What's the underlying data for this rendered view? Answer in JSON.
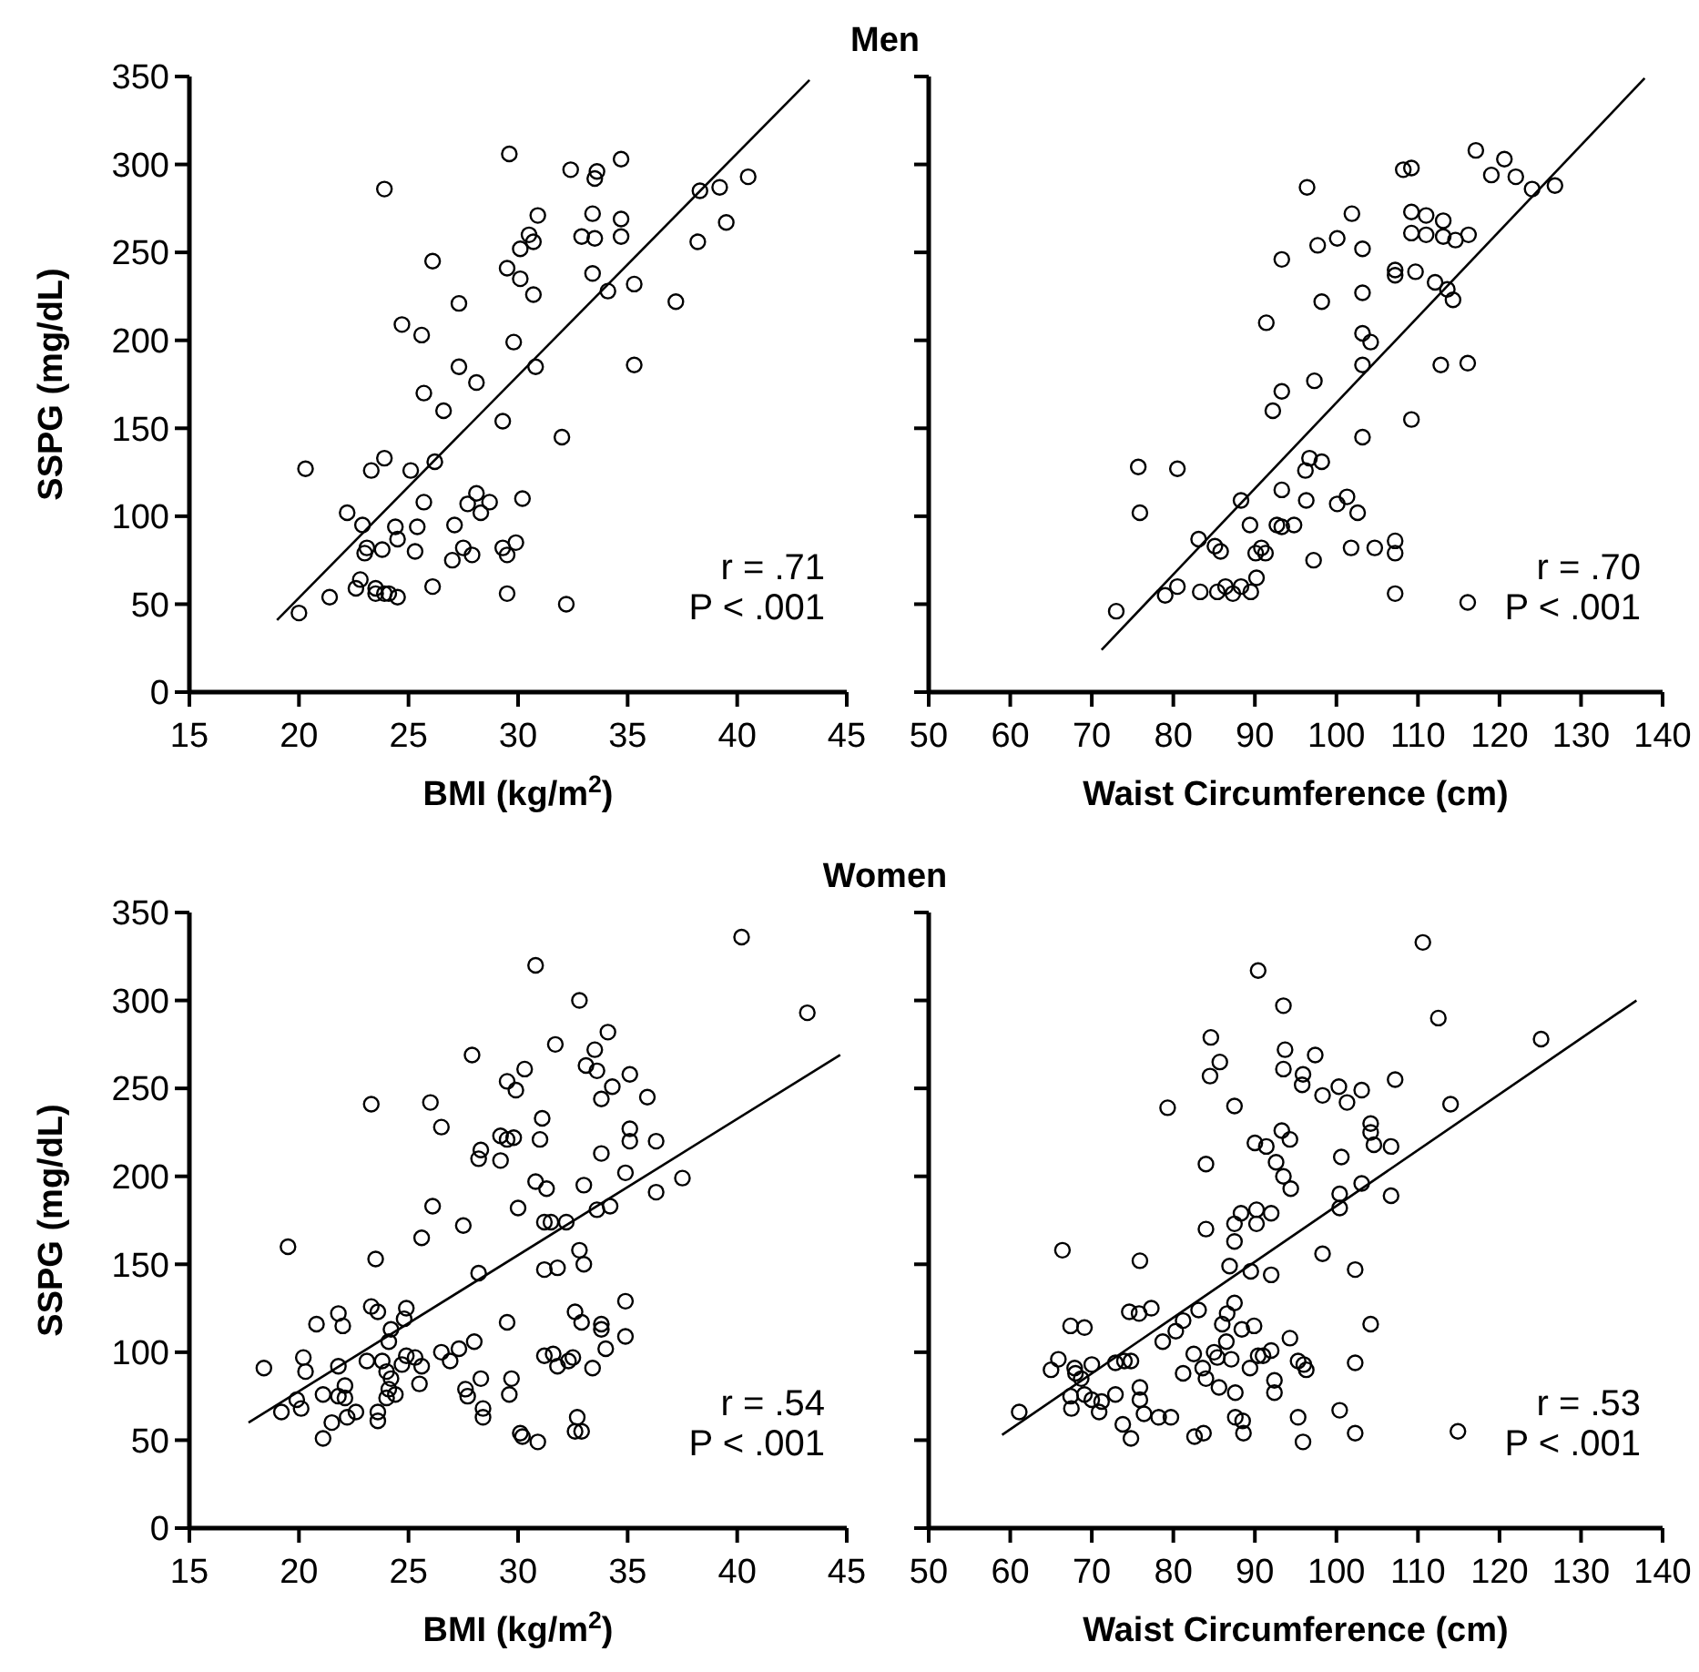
{
  "chart_data": [
    {
      "type": "scatter",
      "title": "Men",
      "xlabel": "BMI (kg/m$^{2}$)",
      "ylabel": "SSPG (mg/dL)",
      "xlim": [
        15,
        45
      ],
      "xticks": [
        15,
        20,
        25,
        30,
        35,
        40,
        45
      ],
      "ylim": [
        0,
        350
      ],
      "yticks": [
        0,
        50,
        100,
        150,
        200,
        250,
        300,
        350
      ],
      "marker": "circle",
      "annotations": [
        "r = .71",
        "P < .001"
      ],
      "series": [
        {
          "color": "#000000",
          "x": [
            20.3,
            20.0,
            21.4,
            22.2,
            22.9,
            22.6,
            22.8,
            23.0,
            23.1,
            23.3,
            23.5,
            23.5,
            23.8,
            23.9,
            23.9,
            23.9,
            24.1,
            24.4,
            24.5,
            24.5,
            24.7,
            25.1,
            25.3,
            25.4,
            25.6,
            25.7,
            25.7,
            26.1,
            26.1,
            26.2,
            26.6,
            27.0,
            27.1,
            27.3,
            27.3,
            27.5,
            27.7,
            27.9,
            28.1,
            28.1,
            28.3,
            28.7,
            29.3,
            29.5,
            29.5,
            29.6,
            29.5,
            29.3,
            29.9,
            29.8,
            30.1,
            30.1,
            30.2,
            30.5,
            30.7,
            30.7,
            30.9,
            30.8,
            32.0,
            32.2,
            32.4,
            32.9,
            33.4,
            33.4,
            33.5,
            33.6,
            33.5,
            34.1,
            34.7,
            34.7,
            34.7,
            35.3,
            35.3,
            37.2,
            38.2,
            38.3,
            39.2,
            39.5,
            40.5
          ],
          "values": [
            127,
            45,
            54,
            102,
            95,
            59,
            64,
            79,
            82,
            126,
            59,
            56,
            81,
            133,
            286,
            56,
            56,
            94,
            87,
            54,
            209,
            126,
            80,
            94,
            203,
            108,
            170,
            60,
            245,
            131,
            160,
            75,
            95,
            221,
            185,
            82,
            107,
            78,
            113,
            176,
            102,
            108,
            154,
            241,
            56,
            306,
            78,
            82,
            85,
            199,
            252,
            235,
            110,
            260,
            256,
            226,
            271,
            185,
            145,
            50,
            297,
            259,
            272,
            238,
            258,
            296,
            292,
            228,
            303,
            269,
            259,
            232,
            186,
            222,
            256,
            285,
            287,
            267,
            293
          ]
        },
        {
          "type": "line",
          "color": "#000000",
          "marker": "none",
          "x": [
            19.0,
            43.3
          ],
          "values": [
            41,
            348
          ]
        }
      ]
    },
    {
      "type": "scatter",
      "xlabel": "Waist Circumference (cm)",
      "xlim": [
        50,
        140
      ],
      "xticks": [
        50,
        60,
        70,
        80,
        90,
        100,
        110,
        120,
        130,
        140
      ],
      "ylim": [
        0,
        350
      ],
      "yticks": [
        0,
        50,
        100,
        150,
        200,
        250,
        300,
        350
      ],
      "tick_labels": "x",
      "marker": "circle",
      "annotations": [
        "r = .70",
        "P < .001"
      ],
      "series": [
        {
          "color": "#000000",
          "x": [
            73.0,
            75.7,
            75.9,
            79.0,
            80.5,
            80.5,
            83.1,
            83.3,
            85.1,
            85.4,
            85.8,
            86.4,
            87.3,
            88.3,
            88.3,
            89.4,
            89.5,
            90.2,
            90.1,
            90.8,
            91.3,
            91.4,
            92.2,
            92.7,
            93.3,
            93.3,
            93.3,
            93.3,
            94.8,
            96.2,
            96.4,
            96.3,
            96.7,
            97.2,
            97.3,
            97.7,
            98.2,
            98.2,
            100.1,
            100.1,
            101.3,
            101.9,
            101.8,
            102.6,
            103.2,
            103.2,
            103.2,
            103.2,
            103.2,
            104.2,
            104.7,
            107.2,
            107.2,
            107.2,
            107.2,
            107.2,
            108.2,
            109.2,
            109.2,
            109.2,
            109.2,
            109.7,
            111.0,
            111.0,
            112.1,
            112.8,
            113.1,
            113.1,
            113.6,
            114.3,
            114.6,
            116.2,
            116.1,
            116.1,
            117.1,
            119.0,
            120.6,
            122.0,
            124.0,
            126.8
          ],
          "values": [
            46,
            128,
            102,
            55,
            127,
            60,
            87,
            57,
            83,
            57,
            80,
            60,
            56,
            109,
            60,
            95,
            57,
            65,
            79,
            82,
            79,
            210,
            160,
            95,
            94,
            171,
            115,
            246,
            95,
            126,
            287,
            109,
            133,
            75,
            177,
            254,
            131,
            222,
            258,
            107,
            111,
            272,
            82,
            102,
            252,
            227,
            204,
            186,
            145,
            199,
            82,
            240,
            237,
            86,
            79,
            56,
            297,
            298,
            155,
            273,
            261,
            239,
            271,
            260,
            233,
            186,
            268,
            259,
            229,
            223,
            257,
            260,
            187,
            51,
            308,
            294,
            303,
            293,
            286,
            288
          ]
        },
        {
          "type": "line",
          "color": "#000000",
          "marker": "none",
          "x": [
            71.2,
            137.8
          ],
          "values": [
            24,
            349
          ]
        }
      ]
    },
    {
      "type": "scatter",
      "title": "Women",
      "xlabel": "BMI (kg/m$^{2}$)",
      "ylabel": "SSPG (mg/dL)",
      "xlim": [
        15,
        45
      ],
      "xticks": [
        15,
        20,
        25,
        30,
        35,
        40,
        45
      ],
      "ylim": [
        0,
        350
      ],
      "yticks": [
        0,
        50,
        100,
        150,
        200,
        250,
        300,
        350
      ],
      "marker": "circle",
      "annotations": [
        "r = .54",
        "P < .001"
      ],
      "series": [
        {
          "color": "#000000",
          "x": [
            18.4,
            19.2,
            19.5,
            20.2,
            20.3,
            20.1,
            19.9,
            20.8,
            21.1,
            21.1,
            21.5,
            21.8,
            21.8,
            22.0,
            21.8,
            22.1,
            22.1,
            22.2,
            22.6,
            23.1,
            23.3,
            23.3,
            23.5,
            23.6,
            23.6,
            23.6,
            23.8,
            24.0,
            24.1,
            24.2,
            24.2,
            24.1,
            24.0,
            24.4,
            24.7,
            24.9,
            24.9,
            24.8,
            25.3,
            25.6,
            25.5,
            25.6,
            26.0,
            26.1,
            26.5,
            26.5,
            26.9,
            27.3,
            27.5,
            27.6,
            27.7,
            27.9,
            28.0,
            28.2,
            28.2,
            28.3,
            28.3,
            28.4,
            28.4,
            29.2,
            29.2,
            29.5,
            29.5,
            29.5,
            29.6,
            29.7,
            29.8,
            29.9,
            30.0,
            30.1,
            30.2,
            30.3,
            30.8,
            30.8,
            30.9,
            31.0,
            31.1,
            31.2,
            31.2,
            31.2,
            31.3,
            31.5,
            31.6,
            31.8,
            31.7,
            31.8,
            32.2,
            32.3,
            32.5,
            32.6,
            32.6,
            32.8,
            32.8,
            32.7,
            32.9,
            32.9,
            33.0,
            33.0,
            33.1,
            33.4,
            33.5,
            33.6,
            33.6,
            33.8,
            33.8,
            33.8,
            33.8,
            34.0,
            34.1,
            34.2,
            34.3,
            34.9,
            34.9,
            34.9,
            35.1,
            35.1,
            35.1,
            35.9,
            36.3,
            36.3,
            37.5,
            40.2,
            43.2
          ],
          "values": [
            91,
            66,
            160,
            97,
            89,
            68,
            73,
            116,
            76,
            51,
            60,
            92,
            122,
            115,
            75,
            81,
            74,
            63,
            66,
            95,
            126,
            241,
            153,
            123,
            66,
            61,
            95,
            89,
            106,
            113,
            85,
            79,
            74,
            76,
            93,
            98,
            125,
            119,
            97,
            92,
            82,
            165,
            242,
            183,
            228,
            100,
            95,
            102,
            172,
            79,
            75,
            269,
            106,
            145,
            210,
            215,
            85,
            68,
            63,
            209,
            223,
            221,
            254,
            117,
            76,
            85,
            222,
            249,
            182,
            54,
            52,
            261,
            320,
            197,
            49,
            221,
            233,
            174,
            98,
            147,
            193,
            174,
            99,
            92,
            275,
            148,
            174,
            95,
            97,
            123,
            55,
            158,
            300,
            63,
            55,
            117,
            150,
            195,
            263,
            91,
            272,
            181,
            260,
            244,
            213,
            116,
            113,
            102,
            282,
            183,
            251,
            129,
            109,
            202,
            258,
            227,
            220,
            245,
            220,
            191,
            199,
            336,
            293
          ]
        },
        {
          "type": "line",
          "color": "#000000",
          "marker": "none",
          "x": [
            17.7,
            44.7
          ],
          "values": [
            60,
            269
          ]
        }
      ]
    },
    {
      "type": "scatter",
      "xlabel": "Waist Circumference (cm)",
      "xlim": [
        50,
        140
      ],
      "xticks": [
        50,
        60,
        70,
        80,
        90,
        100,
        110,
        120,
        130,
        140
      ],
      "ylim": [
        0,
        350
      ],
      "yticks": [
        0,
        50,
        100,
        150,
        200,
        250,
        300,
        350
      ],
      "tick_labels": "x",
      "marker": "circle",
      "annotations": [
        "r = .53",
        "P < .001"
      ],
      "series": [
        {
          "color": "#000000",
          "x": [
            61.1,
            65.0,
            65.9,
            66.4,
            67.4,
            67.5,
            67.4,
            67.9,
            68.0,
            68.7,
            69.1,
            69.1,
            70.0,
            70.0,
            70.9,
            71.2,
            72.9,
            72.9,
            73.8,
            74.0,
            74.8,
            74.8,
            74.6,
            75.8,
            75.9,
            75.9,
            75.9,
            76.4,
            77.3,
            78.2,
            78.7,
            79.7,
            79.3,
            80.3,
            81.2,
            81.2,
            82.5,
            82.6,
            83.1,
            83.6,
            83.7,
            84.0,
            84.0,
            84.0,
            84.5,
            84.6,
            85.0,
            85.4,
            85.6,
            85.7,
            86.0,
            86.5,
            86.6,
            87.1,
            86.9,
            87.5,
            87.5,
            87.5,
            87.5,
            87.6,
            87.6,
            88.6,
            88.4,
            88.5,
            88.3,
            89.4,
            89.5,
            89.9,
            90.0,
            90.2,
            90.2,
            90.4,
            90.4,
            91.0,
            91.4,
            92.0,
            92.0,
            92.0,
            92.4,
            92.4,
            92.6,
            93.5,
            93.5,
            93.7,
            93.3,
            93.5,
            94.3,
            94.4,
            94.3,
            95.3,
            95.3,
            95.8,
            95.9,
            95.9,
            96.0,
            96.3,
            97.4,
            98.3,
            98.3,
            100.3,
            100.4,
            100.4,
            100.4,
            100.6,
            101.3,
            102.3,
            102.3,
            102.3,
            103.1,
            103.1,
            104.2,
            104.2,
            104.2,
            104.6,
            106.7,
            106.7,
            107.2,
            110.6,
            112.5,
            114.0,
            114.9,
            125.1
          ],
          "values": [
            66,
            90,
            96,
            158,
            115,
            68,
            75,
            91,
            88,
            85,
            114,
            76,
            93,
            73,
            66,
            72,
            76,
            94,
            59,
            95,
            51,
            95,
            123,
            122,
            152,
            80,
            73,
            65,
            125,
            63,
            106,
            63,
            239,
            112,
            118,
            88,
            99,
            52,
            124,
            91,
            54,
            85,
            170,
            207,
            257,
            279,
            100,
            97,
            80,
            265,
            116,
            106,
            122,
            96,
            149,
            173,
            163,
            240,
            128,
            77,
            63,
            54,
            113,
            61,
            179,
            91,
            146,
            115,
            219,
            173,
            181,
            317,
            98,
            98,
            217,
            101,
            179,
            144,
            84,
            77,
            208,
            261,
            297,
            272,
            226,
            200,
            221,
            193,
            108,
            95,
            63,
            252,
            258,
            49,
            93,
            90,
            269,
            246,
            156,
            251,
            190,
            182,
            67,
            211,
            242,
            94,
            147,
            54,
            249,
            196,
            230,
            225,
            116,
            218,
            217,
            189,
            255,
            333,
            290,
            241,
            55,
            278
          ]
        },
        {
          "type": "line",
          "color": "#000000",
          "marker": "none",
          "x": [
            59.0,
            136.8
          ],
          "values": [
            53,
            300
          ]
        }
      ]
    }
  ]
}
